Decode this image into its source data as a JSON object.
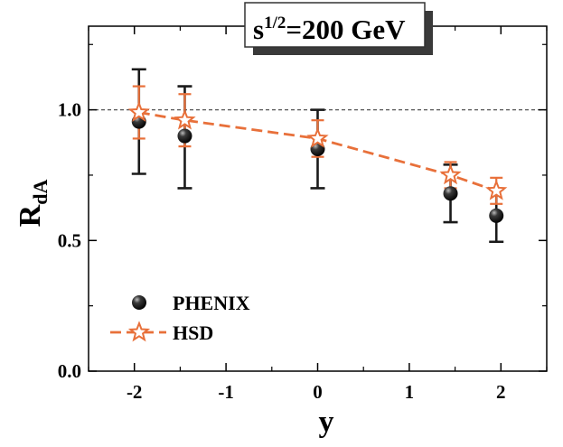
{
  "chart_data": {
    "type": "scatter",
    "title": "s",
    "title_sup": "1/2",
    "title_rest": "=200 GeV",
    "xlabel": "y",
    "ylabel_main": "R",
    "ylabel_sub": "dA",
    "xlim": [
      -2.5,
      2.5
    ],
    "ylim": [
      0.0,
      1.32
    ],
    "xticks": [
      -2,
      -1,
      0,
      1,
      2
    ],
    "xtick_labels": [
      "-2",
      "-1",
      "0",
      "1",
      "2"
    ],
    "yticks": [
      0.0,
      0.5,
      1.0
    ],
    "ytick_labels": [
      "0.0",
      "0.5",
      "1.0"
    ],
    "reference_line": 1.0,
    "legend_position": "bottom-left",
    "series": [
      {
        "name": "PHENIX",
        "marker": "sphere",
        "color": "#1a1a1a",
        "x": [
          -1.95,
          -1.45,
          0.0,
          1.45,
          1.95
        ],
        "y": [
          0.955,
          0.9,
          0.85,
          0.68,
          0.595
        ],
        "err_low": [
          0.2,
          0.2,
          0.15,
          0.11,
          0.1
        ],
        "err_high": [
          0.2,
          0.19,
          0.15,
          0.11,
          0.1
        ]
      },
      {
        "name": "HSD",
        "marker": "star",
        "line": "dashed",
        "color": "#e8703a",
        "x": [
          -1.95,
          -1.45,
          0.0,
          1.45,
          1.95
        ],
        "y": [
          0.99,
          0.96,
          0.89,
          0.75,
          0.69
        ],
        "err_low": [
          0.1,
          0.1,
          0.07,
          0.05,
          0.05
        ],
        "err_high": [
          0.1,
          0.1,
          0.07,
          0.05,
          0.05
        ]
      }
    ]
  }
}
